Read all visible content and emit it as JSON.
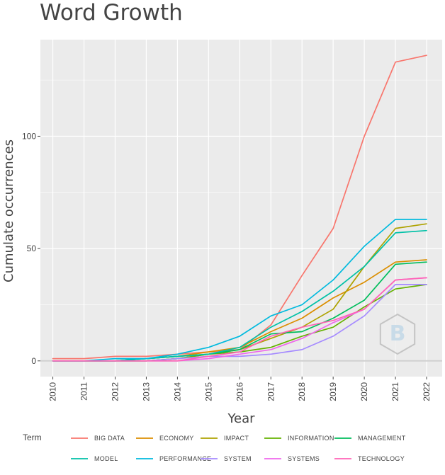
{
  "chart_data": {
    "type": "line",
    "title": "Word Growth",
    "xlabel": "Year",
    "ylabel": "Cumulate occurrences",
    "x": [
      2010,
      2011,
      2012,
      2013,
      2014,
      2015,
      2016,
      2017,
      2018,
      2019,
      2020,
      2021,
      2022
    ],
    "ylim": [
      -7,
      143
    ],
    "yticks": [
      0,
      50,
      100
    ],
    "grid": true,
    "legend_title": "Term",
    "legend_position": "bottom",
    "background": "#ebebeb",
    "series": [
      {
        "name": "BIG DATA",
        "color": "#f8766d",
        "values": [
          1,
          1,
          2,
          2,
          3,
          4,
          5,
          16,
          38,
          59,
          100,
          133,
          136
        ]
      },
      {
        "name": "ECONOMY",
        "color": "#db8e00",
        "values": [
          0,
          0,
          0,
          1,
          2,
          4,
          6,
          13,
          19,
          28,
          35,
          44,
          45
        ]
      },
      {
        "name": "IMPACT",
        "color": "#aea200",
        "values": [
          0,
          0,
          0,
          0,
          1,
          3,
          5,
          10,
          15,
          23,
          42,
          59,
          61
        ]
      },
      {
        "name": "INFORMATION",
        "color": "#64b200",
        "values": [
          0,
          0,
          0,
          0,
          1,
          3,
          4,
          6,
          11,
          15,
          24,
          32,
          34
        ]
      },
      {
        "name": "MANAGEMENT",
        "color": "#00bd5c",
        "values": [
          0,
          0,
          0,
          1,
          2,
          3,
          5,
          12,
          13,
          19,
          27,
          43,
          44
        ]
      },
      {
        "name": "MODEL",
        "color": "#00c1a7",
        "values": [
          0,
          0,
          0,
          1,
          2,
          3,
          6,
          15,
          22,
          31,
          42,
          57,
          58
        ]
      },
      {
        "name": "PERFORMANCE",
        "color": "#00badE",
        "values": [
          0,
          0,
          1,
          1,
          3,
          6,
          11,
          20,
          25,
          36,
          51,
          63,
          63
        ]
      },
      {
        "name": "SYSTEM",
        "color": "#a58aff",
        "values": [
          0,
          0,
          0,
          0,
          1,
          2,
          2,
          3,
          5,
          11,
          20,
          34,
          34
        ]
      },
      {
        "name": "SYSTEMS",
        "color": "#ef67eb",
        "values": [
          0,
          0,
          0,
          0,
          0,
          1,
          3,
          5,
          10,
          17,
          23,
          36,
          37
        ]
      },
      {
        "name": "TECHNOLOGY",
        "color": "#ff63b6",
        "values": [
          0,
          0,
          0,
          0,
          0,
          2,
          4,
          11,
          15,
          18,
          23,
          36,
          37
        ]
      }
    ]
  }
}
